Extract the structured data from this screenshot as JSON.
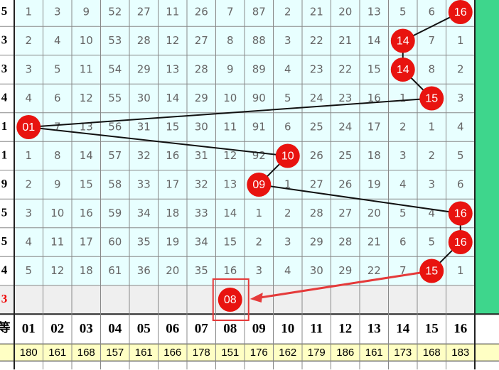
{
  "grid": {
    "left_labels": [
      "5",
      "3",
      "3",
      "4",
      "1",
      "1",
      "9",
      "5",
      "5",
      "4",
      "3"
    ],
    "header_left": "等",
    "rows": [
      [
        "1",
        "3",
        "9",
        "52",
        "27",
        "11",
        "26",
        "7",
        "87",
        "2",
        "21",
        "20",
        "13",
        "5",
        "6",
        {
          "ball": "16"
        }
      ],
      [
        "2",
        "4",
        "10",
        "53",
        "28",
        "12",
        "27",
        "8",
        "88",
        "3",
        "22",
        "21",
        "14",
        {
          "ball": "14"
        },
        "7",
        "1"
      ],
      [
        "3",
        "5",
        "11",
        "54",
        "29",
        "13",
        "28",
        "9",
        "89",
        "4",
        "23",
        "22",
        "15",
        {
          "ball": "14"
        },
        "8",
        "2"
      ],
      [
        "4",
        "6",
        "12",
        "55",
        "30",
        "14",
        "29",
        "10",
        "90",
        "5",
        "24",
        "23",
        "16",
        "1",
        {
          "ball": "15"
        },
        "3"
      ],
      [
        {
          "ball": "01"
        },
        "7",
        "13",
        "56",
        "31",
        "15",
        "30",
        "11",
        "91",
        "6",
        "25",
        "24",
        "17",
        "2",
        "1",
        "4"
      ],
      [
        "1",
        "8",
        "14",
        "57",
        "32",
        "16",
        "31",
        "12",
        "92",
        {
          "ball": "10"
        },
        "26",
        "25",
        "18",
        "3",
        "2",
        "5"
      ],
      [
        "2",
        "9",
        "15",
        "58",
        "33",
        "17",
        "32",
        "13",
        {
          "ball": "09"
        },
        "1",
        "27",
        "26",
        "19",
        "4",
        "3",
        "6"
      ],
      [
        "3",
        "10",
        "16",
        "59",
        "34",
        "18",
        "33",
        "14",
        "1",
        "2",
        "28",
        "27",
        "20",
        "5",
        "4",
        {
          "ball": "16"
        }
      ],
      [
        "4",
        "11",
        "17",
        "60",
        "35",
        "19",
        "34",
        "15",
        "2",
        "3",
        "29",
        "28",
        "21",
        "6",
        "5",
        {
          "ball": "16"
        }
      ],
      [
        "5",
        "12",
        "18",
        "61",
        "36",
        "20",
        "35",
        "16",
        "3",
        "4",
        "30",
        "29",
        "22",
        "7",
        {
          "ball": "15"
        },
        "1"
      ],
      [
        "",
        "",
        "",
        "",
        "",
        "",
        "",
        {
          "ball": "08"
        },
        "",
        "",
        "",
        "",
        "",
        "",
        "",
        ""
      ]
    ],
    "header": [
      "01",
      "02",
      "03",
      "04",
      "05",
      "06",
      "07",
      "08",
      "09",
      "10",
      "11",
      "12",
      "13",
      "14",
      "15",
      "16"
    ],
    "totals": [
      "180",
      "161",
      "168",
      "157",
      "161",
      "166",
      "178",
      "151",
      "176",
      "162",
      "179",
      "186",
      "161",
      "173",
      "168",
      "183"
    ]
  }
}
